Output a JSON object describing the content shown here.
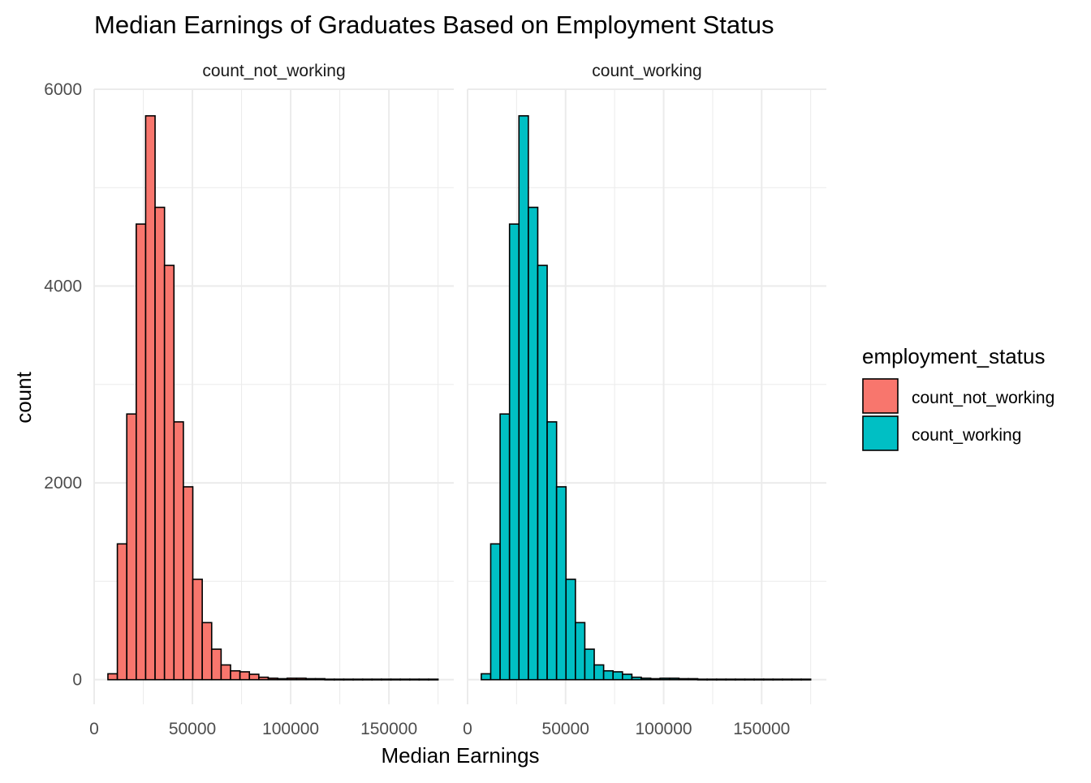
{
  "chart_data": {
    "type": "bar",
    "title": "Median Earnings of Graduates Based on Employment Status",
    "xlabel": "Median Earnings",
    "ylabel": "count",
    "xlim": [
      0,
      183000
    ],
    "ylim": [
      -250,
      6000
    ],
    "x_ticks": [
      0,
      50000,
      100000,
      150000
    ],
    "y_ticks": [
      0,
      2000,
      4000,
      6000
    ],
    "bin_width": 4800,
    "bin_starts": [
      7000,
      11800,
      16600,
      21400,
      26200,
      31000,
      35800,
      40600,
      45400,
      50200,
      55000,
      59800,
      64600,
      69400,
      74200,
      79000,
      83800,
      88600,
      93400,
      98200,
      103000,
      107800,
      112600,
      117400,
      122200,
      127000,
      131800,
      136600,
      141400,
      146200,
      151000,
      155800,
      160600,
      165400,
      170200
    ],
    "grid": true,
    "legend": {
      "title": "employment_status",
      "placement": "right",
      "items": [
        {
          "label": "count_not_working",
          "color": "#F8766D"
        },
        {
          "label": "count_working",
          "color": "#00BFC4"
        }
      ]
    },
    "series": [
      {
        "name": "count_not_working",
        "color": "#F8766D",
        "values": [
          60,
          1380,
          2700,
          4630,
          5730,
          4800,
          4210,
          2620,
          1960,
          1020,
          580,
          310,
          150,
          90,
          80,
          55,
          25,
          15,
          10,
          15,
          15,
          10,
          10,
          5,
          5,
          5,
          5,
          5,
          5,
          5,
          5,
          5,
          5,
          5,
          5
        ]
      },
      {
        "name": "count_working",
        "color": "#00BFC4",
        "values": [
          60,
          1380,
          2700,
          4630,
          5730,
          4800,
          4210,
          2620,
          1960,
          1020,
          580,
          310,
          150,
          90,
          80,
          55,
          25,
          15,
          10,
          15,
          15,
          10,
          10,
          5,
          5,
          5,
          5,
          5,
          5,
          5,
          5,
          5,
          5,
          5,
          5
        ]
      }
    ]
  }
}
